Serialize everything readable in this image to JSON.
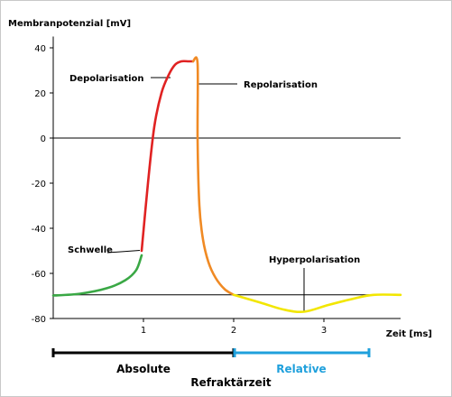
{
  "chart_data": {
    "type": "line",
    "title": "",
    "ylabel": "Membranpotenzial [mV]",
    "xlabel": "Zeit [ms]",
    "xlim": [
      0,
      3.85
    ],
    "ylim": [
      -80,
      45
    ],
    "xticks": [
      1,
      2,
      3
    ],
    "yticks": [
      40,
      20,
      0,
      -20,
      -40,
      -60,
      -80
    ],
    "grid": false,
    "segments": [
      {
        "phase": "resting_rise",
        "color": "#3aa845",
        "x": [
          0,
          0.3,
          0.6,
          0.8,
          0.92,
          0.98
        ],
        "y": [
          -69.8,
          -69,
          -66.5,
          -63,
          -58.5,
          -52
        ]
      },
      {
        "phase": "depolarisation",
        "color": "#e02222",
        "x": [
          0.98,
          1.05,
          1.12,
          1.2,
          1.28,
          1.35,
          1.42,
          1.5,
          1.55
        ],
        "y": [
          -50,
          -20,
          5,
          20,
          28,
          32.5,
          34,
          34,
          34
        ]
      },
      {
        "phase": "repolarisation",
        "color": "#f08a24",
        "x": [
          1.55,
          1.6,
          1.6,
          1.62,
          1.66,
          1.72,
          1.8,
          1.9,
          2.0
        ],
        "y": [
          34,
          33,
          0,
          -30,
          -45,
          -55,
          -62,
          -67,
          -69.5
        ]
      },
      {
        "phase": "hyperpolarisation",
        "color": "#f2e600",
        "x": [
          2.0,
          2.3,
          2.55,
          2.78,
          3.05,
          3.35,
          3.55,
          3.85
        ],
        "y": [
          -69.5,
          -73,
          -76,
          -77,
          -74,
          -71,
          -69.5,
          -69.5
        ]
      }
    ],
    "reference_lines": [
      {
        "y": 0,
        "x": [
          0,
          3.85
        ]
      },
      {
        "y": -69.5,
        "x": [
          0,
          3.55
        ]
      }
    ],
    "annotations": [
      {
        "text": "Depolarisation",
        "x": 1.28,
        "y": 28
      },
      {
        "text": "Repolarisation",
        "x": 1.6,
        "y": 30
      },
      {
        "text": "Schwelle",
        "x": 0.98,
        "y": -50
      },
      {
        "text": "Hyperpolarisation",
        "x": 2.78,
        "y": -77
      }
    ],
    "refractory": {
      "absolute": {
        "label": "Absolute",
        "x": [
          0,
          2.0
        ],
        "color": "#000000"
      },
      "relative": {
        "label": "Relative",
        "x": [
          2.0,
          3.5
        ],
        "color": "#1fa0dc"
      },
      "caption": "Refraktärzeit"
    }
  }
}
